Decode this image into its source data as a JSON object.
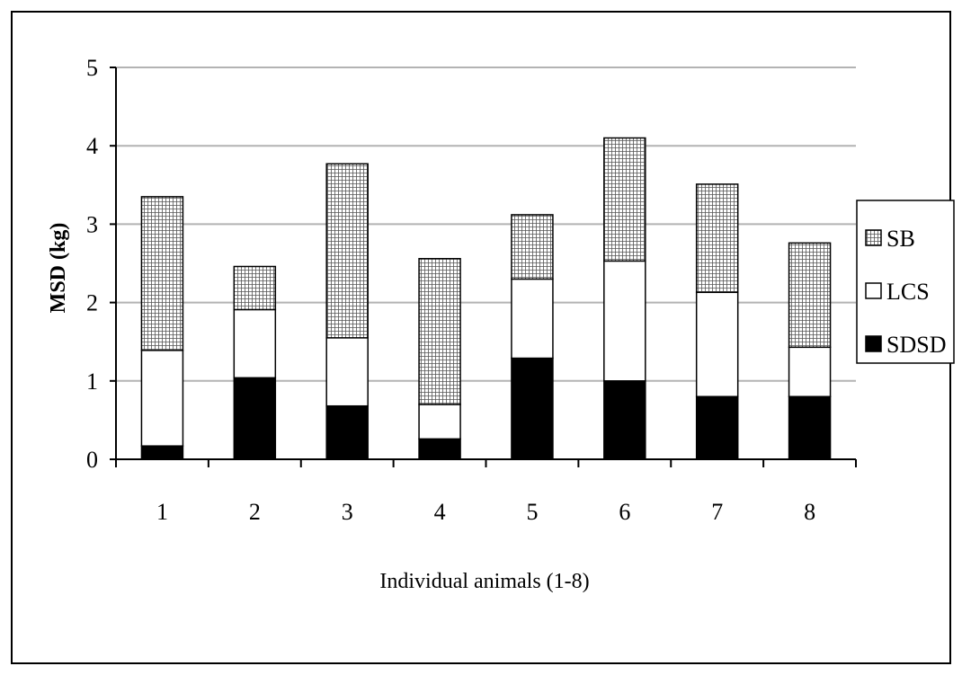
{
  "chart_data": {
    "type": "bar",
    "stacked": true,
    "categories": [
      "1",
      "2",
      "3",
      "4",
      "5",
      "6",
      "7",
      "8"
    ],
    "series": [
      {
        "name": "SDSD",
        "values": [
          0.17,
          1.04,
          0.68,
          0.26,
          1.29,
          1.0,
          0.8,
          0.8
        ],
        "color": "#000000",
        "pattern": "solid"
      },
      {
        "name": "LCS",
        "values": [
          1.22,
          0.87,
          0.87,
          0.44,
          1.01,
          1.53,
          1.33,
          0.63
        ],
        "color": "#ffffff",
        "pattern": "none"
      },
      {
        "name": "SB",
        "values": [
          1.96,
          0.55,
          2.22,
          1.86,
          0.82,
          1.57,
          1.38,
          1.33
        ],
        "color": "#808080",
        "pattern": "grid"
      }
    ],
    "xlabel": "Individual animals (1-8)",
    "ylabel": "MSD (kg)",
    "ylim": [
      0,
      5
    ],
    "yticks": [
      "0",
      "1",
      "2",
      "3",
      "4",
      "5"
    ],
    "grid": true,
    "legend_position": "right",
    "legend_order": [
      "SB",
      "LCS",
      "SDSD"
    ]
  }
}
